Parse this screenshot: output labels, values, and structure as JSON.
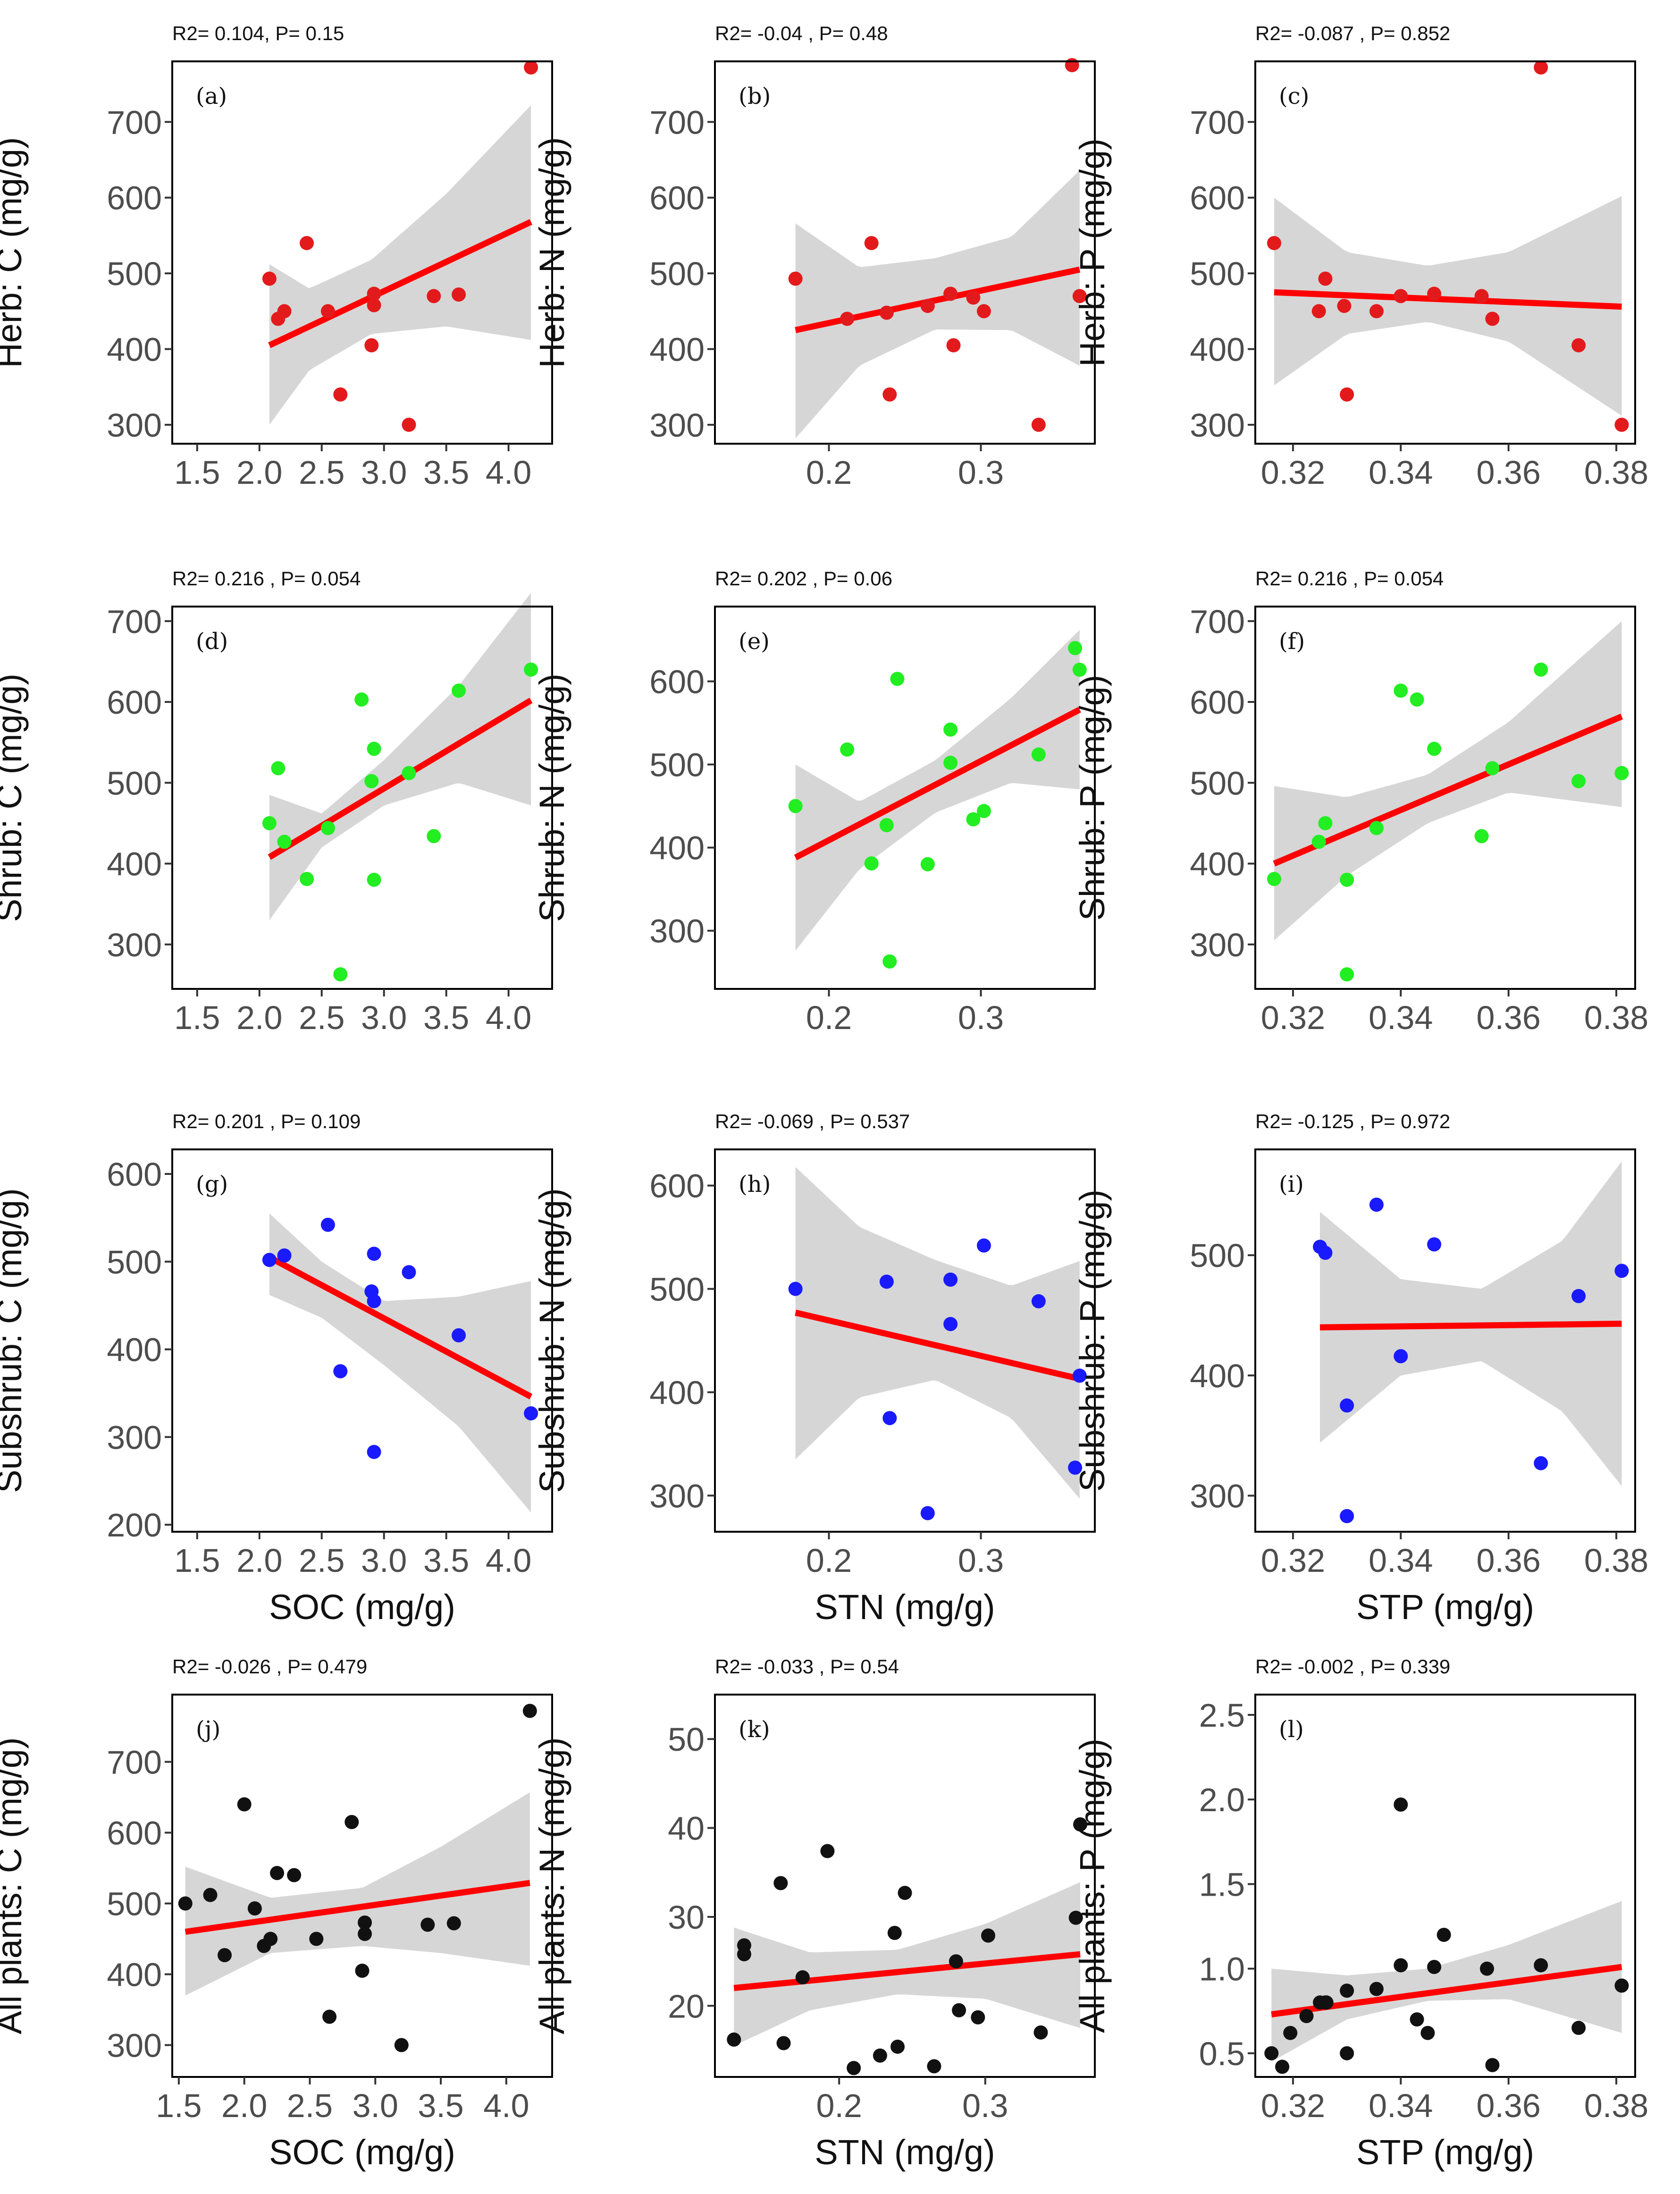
{
  "figure": {
    "bg": "#ffffff"
  },
  "colors": {
    "herb": "#e31a1c",
    "shrub": "#22ee22",
    "subshrub": "#1a1aff",
    "all": "#111111",
    "line": "#ff0000",
    "band": "#d4d4d4"
  },
  "chart_data": [
    {
      "id": "a",
      "type": "scatter",
      "label": "(a)",
      "stats": "R2= 0.104, P= 0.15",
      "ylabel": "Herb: C (mg/g)",
      "xlabel": "",
      "xlim": [
        1.3,
        4.35
      ],
      "ylim": [
        275,
        780
      ],
      "xticks": [
        1.5,
        2.0,
        2.5,
        3.0,
        3.5,
        4.0
      ],
      "xtick_labels": [
        "1.5",
        "2.0",
        "2.5",
        "3.0",
        "3.5",
        "4.0"
      ],
      "yticks": [
        300,
        400,
        500,
        600,
        700
      ],
      "color": "herb",
      "x": [
        2.08,
        2.15,
        2.2,
        2.38,
        2.55,
        2.65,
        2.9,
        2.92,
        2.92,
        3.2,
        3.4,
        3.6,
        4.18
      ],
      "y": [
        493,
        440,
        450,
        540,
        450,
        340,
        405,
        473,
        458,
        300,
        470,
        472,
        772
      ],
      "fit": {
        "x": [
          2.08,
          4.18
        ],
        "y": [
          405,
          568
        ]
      },
      "band": {
        "x": [
          2.08,
          2.4,
          2.9,
          3.5,
          4.18
        ],
        "lower": [
          300,
          372,
          420,
          430,
          412
        ],
        "upper": [
          512,
          480,
          518,
          605,
          722
        ]
      }
    },
    {
      "id": "b",
      "type": "scatter",
      "label": "(b)",
      "stats": "R2= -0.04 , P= 0.48",
      "ylabel": "Herb: N (mg/g)",
      "xlabel": "",
      "xlim": [
        0.125,
        0.375
      ],
      "ylim": [
        275,
        780
      ],
      "xticks": [
        0.2,
        0.3
      ],
      "xtick_labels": [
        "0.2",
        "0.3"
      ],
      "yticks": [
        300,
        400,
        500,
        600,
        700
      ],
      "color": "herb",
      "x": [
        0.178,
        0.212,
        0.228,
        0.24,
        0.238,
        0.265,
        0.282,
        0.28,
        0.295,
        0.302,
        0.338,
        0.36,
        0.365
      ],
      "y": [
        493,
        440,
        540,
        340,
        448,
        457,
        405,
        473,
        468,
        450,
        300,
        775,
        470
      ],
      "fit": {
        "x": [
          0.178,
          0.365
        ],
        "y": [
          425,
          505
        ]
      },
      "band": {
        "x": [
          0.178,
          0.22,
          0.27,
          0.32,
          0.365
        ],
        "lower": [
          282,
          378,
          426,
          425,
          378
        ],
        "upper": [
          566,
          508,
          520,
          548,
          636
        ]
      }
    },
    {
      "id": "c",
      "type": "scatter",
      "label": "(c)",
      "stats": "R2= -0.087 , P= 0.852",
      "ylabel": "Herb: P (mg/g)",
      "xlabel": "",
      "xlim": [
        0.313,
        0.3835
      ],
      "ylim": [
        275,
        780
      ],
      "xticks": [
        0.32,
        0.34,
        0.36,
        0.38
      ],
      "xtick_labels": [
        "0.32",
        "0.34",
        "0.36",
        "0.38"
      ],
      "yticks": [
        300,
        400,
        500,
        600,
        700
      ],
      "color": "herb",
      "x": [
        0.3165,
        0.3248,
        0.326,
        0.3295,
        0.33,
        0.3355,
        0.34,
        0.3462,
        0.355,
        0.357,
        0.366,
        0.373,
        0.381
      ],
      "y": [
        540,
        450,
        493,
        457,
        340,
        450,
        470,
        473,
        470,
        440,
        772,
        405,
        300
      ],
      "fit": {
        "x": [
          0.3165,
          0.381
        ],
        "y": [
          475,
          456
        ]
      },
      "band": {
        "x": [
          0.3165,
          0.33,
          0.345,
          0.36,
          0.381
        ],
        "lower": [
          352,
          420,
          436,
          410,
          312
        ],
        "upper": [
          600,
          528,
          510,
          528,
          602
        ]
      }
    },
    {
      "id": "d",
      "type": "scatter",
      "label": "(d)",
      "stats": "R2= 0.216 , P= 0.054",
      "ylabel": "Shrub: C (mg/g)",
      "xlabel": "",
      "xlim": [
        1.3,
        4.35
      ],
      "ylim": [
        245,
        718
      ],
      "xticks": [
        1.5,
        2.0,
        2.5,
        3.0,
        3.5,
        4.0
      ],
      "xtick_labels": [
        "1.5",
        "2.0",
        "2.5",
        "3.0",
        "3.5",
        "4.0"
      ],
      "yticks": [
        300,
        400,
        500,
        600,
        700
      ],
      "color": "shrub",
      "x": [
        2.08,
        2.15,
        2.2,
        2.38,
        2.55,
        2.65,
        2.82,
        2.9,
        2.92,
        2.92,
        3.2,
        3.4,
        3.6,
        4.18
      ],
      "y": [
        450,
        518,
        427,
        381,
        444,
        263,
        603,
        502,
        542,
        380,
        512,
        434,
        614,
        640
      ],
      "fit": {
        "x": [
          2.08,
          4.18
        ],
        "y": [
          408,
          602
        ]
      },
      "band": {
        "x": [
          2.08,
          2.5,
          3.0,
          3.6,
          4.18
        ],
        "lower": [
          330,
          420,
          472,
          500,
          472
        ],
        "upper": [
          485,
          462,
          528,
          620,
          735
        ]
      }
    },
    {
      "id": "e",
      "type": "scatter",
      "label": "(e)",
      "stats": "R2= 0.202 , P= 0.06",
      "ylabel": "Shrub: N (mg/g)",
      "xlabel": "",
      "xlim": [
        0.125,
        0.375
      ],
      "ylim": [
        230,
        690
      ],
      "xticks": [
        0.2,
        0.3
      ],
      "xtick_labels": [
        "0.2",
        "0.3"
      ],
      "yticks": [
        300,
        400,
        500,
        600
      ],
      "color": "shrub",
      "x": [
        0.178,
        0.212,
        0.228,
        0.238,
        0.24,
        0.245,
        0.265,
        0.28,
        0.28,
        0.295,
        0.302,
        0.338,
        0.362,
        0.365
      ],
      "y": [
        450,
        518,
        381,
        427,
        263,
        603,
        380,
        542,
        502,
        434,
        444,
        512,
        640,
        614
      ],
      "fit": {
        "x": [
          0.178,
          0.365
        ],
        "y": [
          388,
          566
        ]
      },
      "band": {
        "x": [
          0.178,
          0.22,
          0.27,
          0.32,
          0.365
        ],
        "lower": [
          276,
          374,
          442,
          478,
          470
        ],
        "upper": [
          500,
          455,
          505,
          580,
          662
        ]
      }
    },
    {
      "id": "f",
      "type": "scatter",
      "label": "(f)",
      "stats": "R2= 0.216 , P= 0.054",
      "ylabel": "Shrub: P (mg/g)",
      "xlabel": "",
      "xlim": [
        0.313,
        0.3835
      ],
      "ylim": [
        245,
        718
      ],
      "xticks": [
        0.32,
        0.34,
        0.36,
        0.38
      ],
      "xtick_labels": [
        "0.32",
        "0.34",
        "0.36",
        "0.38"
      ],
      "yticks": [
        300,
        400,
        500,
        600,
        700
      ],
      "color": "shrub",
      "x": [
        0.3165,
        0.3248,
        0.326,
        0.33,
        0.33,
        0.3355,
        0.34,
        0.343,
        0.3462,
        0.355,
        0.357,
        0.366,
        0.373,
        0.381
      ],
      "y": [
        381,
        427,
        450,
        380,
        263,
        444,
        614,
        603,
        542,
        434,
        518,
        640,
        502,
        512
      ],
      "fit": {
        "x": [
          0.3165,
          0.381
        ],
        "y": [
          400,
          582
        ]
      },
      "band": {
        "x": [
          0.3165,
          0.33,
          0.345,
          0.36,
          0.381
        ],
        "lower": [
          305,
          385,
          450,
          488,
          470
        ],
        "upper": [
          496,
          482,
          510,
          575,
          700
        ]
      }
    },
    {
      "id": "g",
      "type": "scatter",
      "label": "(g)",
      "stats": "R2= 0.201 , P= 0.109",
      "ylabel": "Subshrub: C (mg/g)",
      "xlabel": "SOC (mg/g)",
      "xlim": [
        1.3,
        4.35
      ],
      "ylim": [
        192,
        628
      ],
      "xticks": [
        1.5,
        2.0,
        2.5,
        3.0,
        3.5,
        4.0
      ],
      "xtick_labels": [
        "1.5",
        "2.0",
        "2.5",
        "3.0",
        "3.5",
        "4.0"
      ],
      "yticks": [
        200,
        300,
        400,
        500,
        600
      ],
      "color": "subshrub",
      "x": [
        2.08,
        2.2,
        2.55,
        2.65,
        2.9,
        2.92,
        2.92,
        2.92,
        3.2,
        3.6,
        4.18
      ],
      "y": [
        502,
        507,
        542,
        375,
        466,
        509,
        455,
        283,
        488,
        416,
        327
      ],
      "fit": {
        "x": [
          2.08,
          4.18
        ],
        "y": [
          505,
          346
        ]
      },
      "band": {
        "x": [
          2.08,
          2.5,
          3.0,
          3.6,
          4.18
        ],
        "lower": [
          462,
          436,
          382,
          312,
          214
        ],
        "upper": [
          555,
          500,
          455,
          460,
          478
        ]
      }
    },
    {
      "id": "h",
      "type": "scatter",
      "label": "(h)",
      "stats": "R2= -0.069 , P= 0.537",
      "ylabel": "Subshrub: N (mg/g)",
      "xlabel": "STN (mg/g)",
      "xlim": [
        0.125,
        0.375
      ],
      "ylim": [
        265,
        635
      ],
      "xticks": [
        0.2,
        0.3
      ],
      "xtick_labels": [
        "0.2",
        "0.3"
      ],
      "yticks": [
        300,
        400,
        500,
        600
      ],
      "color": "subshrub",
      "x": [
        0.178,
        0.238,
        0.24,
        0.265,
        0.28,
        0.28,
        0.302,
        0.338,
        0.362,
        0.365
      ],
      "y": [
        500,
        507,
        375,
        283,
        509,
        466,
        542,
        488,
        327,
        416
      ],
      "fit": {
        "x": [
          0.178,
          0.365
        ],
        "y": [
          477,
          413
        ]
      },
      "band": {
        "x": [
          0.178,
          0.22,
          0.27,
          0.32,
          0.365
        ],
        "lower": [
          335,
          395,
          412,
          375,
          297
        ],
        "upper": [
          618,
          560,
          528,
          503,
          527
        ]
      }
    },
    {
      "id": "i",
      "type": "scatter",
      "label": "(i)",
      "stats": "R2= -0.125 , P= 0.972",
      "ylabel": "Subshrub: P (mg/g)",
      "xlabel": "STP (mg/g)",
      "xlim": [
        0.313,
        0.3835
      ],
      "ylim": [
        270,
        588
      ],
      "xticks": [
        0.32,
        0.34,
        0.36,
        0.38
      ],
      "xtick_labels": [
        "0.32",
        "0.34",
        "0.36",
        "0.38"
      ],
      "yticks": [
        300,
        400,
        500
      ],
      "color": "subshrub",
      "x": [
        0.325,
        0.326,
        0.33,
        0.33,
        0.3355,
        0.34,
        0.3462,
        0.366,
        0.373,
        0.381
      ],
      "y": [
        507,
        502,
        375,
        283,
        542,
        416,
        509,
        327,
        466,
        487
      ],
      "fit": {
        "x": [
          0.325,
          0.381
        ],
        "y": [
          440,
          443
        ]
      },
      "band": {
        "x": [
          0.325,
          0.34,
          0.355,
          0.37,
          0.381
        ],
        "lower": [
          344,
          400,
          412,
          370,
          308
        ],
        "upper": [
          536,
          480,
          472,
          512,
          578
        ]
      }
    },
    {
      "id": "j",
      "type": "scatter",
      "label": "(j)",
      "stats": "R2= -0.026 , P= 0.479",
      "ylabel": "All plants: C (mg/g)",
      "xlabel": "SOC (mg/g)",
      "xlim": [
        1.45,
        4.35
      ],
      "ylim": [
        255,
        795
      ],
      "xticks": [
        1.5,
        2.0,
        2.5,
        3.0,
        3.5,
        4.0
      ],
      "xtick_labels": [
        "1.5",
        "2.0",
        "2.5",
        "3.0",
        "3.5",
        "4.0"
      ],
      "yticks": [
        300,
        400,
        500,
        600,
        700
      ],
      "color": "all",
      "x": [
        1.55,
        1.74,
        1.85,
        2.0,
        2.08,
        2.15,
        2.2,
        2.25,
        2.38,
        2.55,
        2.65,
        2.82,
        2.9,
        2.92,
        2.92,
        3.2,
        3.4,
        3.6,
        4.18
      ],
      "y": [
        500,
        512,
        427,
        640,
        493,
        440,
        450,
        543,
        540,
        450,
        340,
        615,
        405,
        473,
        457,
        300,
        470,
        472,
        772
      ],
      "fit": {
        "x": [
          1.55,
          4.18
        ],
        "y": [
          460,
          529
        ]
      },
      "band": {
        "x": [
          1.55,
          2.2,
          2.9,
          3.5,
          4.18
        ],
        "lower": [
          370,
          430,
          440,
          430,
          412
        ],
        "upper": [
          552,
          508,
          522,
          580,
          657
        ]
      }
    },
    {
      "id": "k",
      "type": "scatter",
      "label": "(k)",
      "stats": "R2= -0.033 , P= 0.54",
      "ylabel": "All plants: N (mg/g)",
      "xlabel": "STN (mg/g)",
      "xlim": [
        0.115,
        0.375
      ],
      "ylim": [
        12,
        55
      ],
      "xticks": [
        0.2,
        0.3
      ],
      "xtick_labels": [
        "0.2",
        "0.3"
      ],
      "yticks": [
        20,
        30,
        40,
        50
      ],
      "color": "all",
      "x": [
        0.128,
        0.135,
        0.135,
        0.16,
        0.162,
        0.175,
        0.192,
        0.21,
        0.228,
        0.238,
        0.24,
        0.245,
        0.265,
        0.28,
        0.282,
        0.295,
        0.302,
        0.338,
        0.362,
        0.365
      ],
      "y": [
        16.2,
        26.8,
        25.8,
        33.8,
        15.8,
        23.2,
        37.4,
        13.0,
        14.4,
        28.2,
        15.4,
        32.7,
        13.2,
        25.0,
        19.5,
        18.7,
        27.9,
        17.0,
        29.9,
        40.4
      ],
      "fit": {
        "x": [
          0.128,
          0.365
        ],
        "y": [
          22.0,
          25.8
        ]
      },
      "band": {
        "x": [
          0.128,
          0.18,
          0.24,
          0.3,
          0.365
        ],
        "lower": [
          15.5,
          19.5,
          21.3,
          20.8,
          17.5
        ],
        "upper": [
          28.8,
          26.0,
          26.3,
          29.2,
          33.9
        ]
      }
    },
    {
      "id": "l",
      "type": "scatter",
      "label": "(l)",
      "stats": "R2= -0.002 , P= 0.339",
      "ylabel": "All plants: P (mg/g)",
      "xlabel": "STP (mg/g)",
      "xlim": [
        0.313,
        0.3835
      ],
      "ylim": [
        0.36,
        2.62
      ],
      "xticks": [
        0.32,
        0.34,
        0.36,
        0.38
      ],
      "xtick_labels": [
        "0.32",
        "0.34",
        "0.36",
        "0.38"
      ],
      "yticks": [
        0.5,
        1.0,
        1.5,
        2.0,
        2.5
      ],
      "ytick_labels": [
        "0.5",
        "1.0",
        "1.5",
        "2.0",
        "2.5"
      ],
      "color": "all",
      "x": [
        0.316,
        0.318,
        0.3195,
        0.3225,
        0.325,
        0.326,
        0.3262,
        0.33,
        0.33,
        0.3355,
        0.34,
        0.34,
        0.343,
        0.345,
        0.3462,
        0.348,
        0.356,
        0.357,
        0.366,
        0.373,
        0.381
      ],
      "y": [
        0.5,
        0.42,
        0.62,
        0.72,
        0.8,
        0.8,
        0.8,
        0.87,
        0.5,
        0.88,
        1.02,
        1.97,
        0.7,
        0.62,
        1.01,
        1.2,
        1.0,
        0.43,
        1.02,
        0.65,
        0.9
      ],
      "fit": {
        "x": [
          0.316,
          0.381
        ],
        "y": [
          0.73,
          1.01
        ]
      },
      "band": {
        "x": [
          0.316,
          0.33,
          0.345,
          0.36,
          0.381
        ],
        "lower": [
          0.45,
          0.7,
          0.81,
          0.82,
          0.62
        ],
        "upper": [
          1.0,
          0.96,
          1.0,
          1.14,
          1.4
        ]
      }
    }
  ]
}
